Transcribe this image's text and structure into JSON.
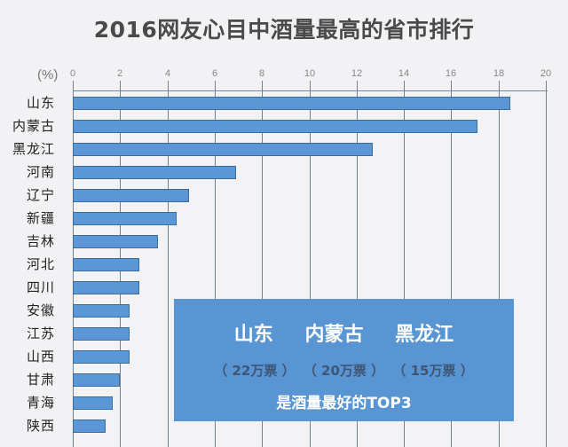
{
  "chart_data": {
    "type": "bar",
    "orientation": "horizontal",
    "title": "2016网友心目中酒量最高的省市排行",
    "xlabel": "(%)",
    "ylabel": "",
    "xlim": [
      0,
      20
    ],
    "x_ticks": [
      0,
      2,
      4,
      6,
      8,
      10,
      12,
      14,
      16,
      18,
      20
    ],
    "grid": true,
    "axis_position": "top",
    "categories": [
      "山东",
      "内蒙古",
      "黑龙江",
      "河南",
      "辽宁",
      "新疆",
      "吉林",
      "河北",
      "四川",
      "安徽",
      "江苏",
      "山西",
      "甘肃",
      "青海",
      "陕西"
    ],
    "values": [
      18.5,
      17.1,
      12.7,
      6.9,
      4.9,
      4.4,
      3.6,
      2.8,
      2.8,
      2.4,
      2.4,
      2.4,
      2.0,
      1.7,
      1.4
    ],
    "bar_color": "#5b97d6",
    "annotation": {
      "top3": [
        "山东",
        "内蒙古",
        "黑龙江"
      ],
      "votes": [
        "（ 22万票 ）",
        "（ 20万票 ）",
        "（ 15万票 ）"
      ],
      "tagline": "是酒量最好的TOP3"
    }
  },
  "header": {
    "title": "2016网友心目中酒量最高的省市排行",
    "unit": "(%)"
  },
  "overlay": {
    "names": [
      "山东",
      "内蒙古",
      "黑龙江"
    ],
    "votes": [
      "（ 22万票 ）",
      "（ 20万票 ）",
      "（ 15万票 ）"
    ],
    "tagline": "是酒量最好的TOP3",
    "background": "#5a95d3"
  }
}
